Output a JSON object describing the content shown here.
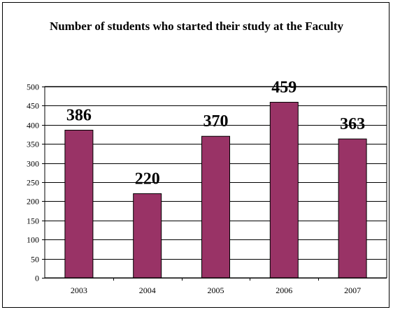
{
  "chart_data": {
    "type": "bar",
    "title": "Number of students who started their study at the Faculty",
    "categories": [
      "2003",
      "2004",
      "2005",
      "2006",
      "2007"
    ],
    "values": [
      386,
      220,
      370,
      459,
      363
    ],
    "data_labels": [
      "386",
      "220",
      "370",
      "459",
      "363"
    ],
    "xlabel": "",
    "ylabel": "",
    "ylim": [
      0,
      500
    ],
    "yticks": [
      0,
      50,
      100,
      150,
      200,
      250,
      300,
      350,
      400,
      450,
      500
    ],
    "grid": true,
    "legend": "none",
    "colors": {
      "bar_fill": "#993366",
      "bar_stroke": "#000000",
      "grid": "#000000",
      "plot_background": "#ffffff"
    }
  }
}
